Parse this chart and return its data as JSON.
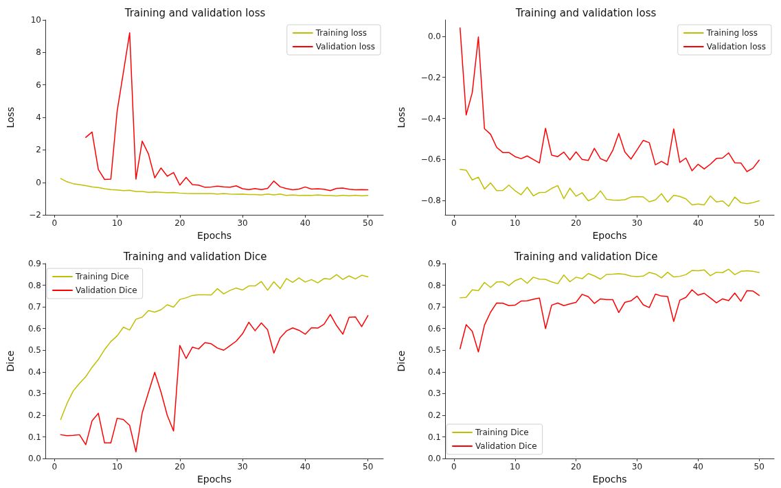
{
  "chart_data": [
    {
      "type": "line",
      "title": "Training and validation loss",
      "xlabel": "Epochs",
      "ylabel": "Loss",
      "legend": "top right",
      "grid": false,
      "x": [
        1,
        2,
        3,
        4,
        5,
        6,
        7,
        8,
        9,
        10,
        11,
        12,
        13,
        14,
        15,
        16,
        17,
        18,
        19,
        20,
        21,
        22,
        23,
        24,
        25,
        26,
        27,
        28,
        29,
        30,
        31,
        32,
        33,
        34,
        35,
        36,
        37,
        38,
        39,
        40,
        41,
        42,
        43,
        44,
        45,
        46,
        47,
        48,
        49,
        50
      ],
      "xlim": [
        -1.45,
        52.45
      ],
      "xticks": [
        0,
        10,
        20,
        30,
        40,
        50
      ],
      "ylim": [
        -2,
        10
      ],
      "yticks": [
        {
          "value": -2,
          "label": "−2"
        },
        0,
        2,
        4,
        6,
        8,
        10
      ],
      "series": [
        {
          "name": "Training loss",
          "color": "#bfbf00",
          "values": [
            0.24,
            0.04,
            -0.08,
            -0.14,
            -0.2,
            -0.27,
            -0.32,
            -0.39,
            -0.44,
            -0.46,
            -0.51,
            -0.49,
            -0.56,
            -0.56,
            -0.61,
            -0.59,
            -0.61,
            -0.63,
            -0.62,
            -0.66,
            -0.68,
            -0.69,
            -0.69,
            -0.69,
            -0.69,
            -0.72,
            -0.69,
            -0.72,
            -0.73,
            -0.72,
            -0.75,
            -0.75,
            -0.77,
            -0.72,
            -0.77,
            -0.72,
            -0.8,
            -0.77,
            -0.8,
            -0.79,
            -0.8,
            -0.77,
            -0.8,
            -0.8,
            -0.83,
            -0.79,
            -0.82,
            -0.79,
            -0.82,
            -0.8
          ]
        },
        {
          "name": "Validation loss",
          "color": "#ff0000",
          "values": [
            null,
            null,
            null,
            null,
            2.77,
            3.1,
            0.8,
            0.18,
            0.2,
            4.38,
            6.77,
            9.21,
            0.2,
            2.54,
            1.75,
            0.28,
            0.89,
            0.38,
            0.61,
            -0.17,
            0.31,
            -0.14,
            -0.17,
            -0.3,
            -0.28,
            -0.23,
            -0.27,
            -0.3,
            -0.21,
            -0.39,
            -0.44,
            -0.38,
            -0.44,
            -0.37,
            0.08,
            -0.27,
            -0.38,
            -0.45,
            -0.41,
            -0.28,
            -0.41,
            -0.39,
            -0.42,
            -0.51,
            -0.37,
            -0.35,
            -0.42,
            -0.45,
            -0.44,
            -0.45
          ]
        }
      ]
    },
    {
      "type": "line",
      "title": "Training and validation loss",
      "xlabel": "Epochs",
      "ylabel": "Loss",
      "legend": "top right",
      "grid": false,
      "x": [
        1,
        2,
        3,
        4,
        5,
        6,
        7,
        8,
        9,
        10,
        11,
        12,
        13,
        14,
        15,
        16,
        17,
        18,
        19,
        20,
        21,
        22,
        23,
        24,
        25,
        26,
        27,
        28,
        29,
        30,
        31,
        32,
        33,
        34,
        35,
        36,
        37,
        38,
        39,
        40,
        41,
        42,
        43,
        44,
        45,
        46,
        47,
        48,
        49,
        50
      ],
      "xlim": [
        -1.45,
        52.45
      ],
      "xticks": [
        0,
        10,
        20,
        30,
        40,
        50
      ],
      "ylim": [
        -0.87,
        0.08
      ],
      "yticks": [
        {
          "value": -0.8,
          "label": "−0.8"
        },
        {
          "value": -0.6,
          "label": "−0.6"
        },
        {
          "value": -0.4,
          "label": "−0.4"
        },
        {
          "value": -0.2,
          "label": "−0.2"
        },
        {
          "value": 0,
          "label": "0.0"
        }
      ],
      "series": [
        {
          "name": "Training loss",
          "color": "#bfbf00",
          "values": [
            -0.648,
            -0.652,
            -0.7,
            -0.686,
            -0.744,
            -0.714,
            -0.752,
            -0.751,
            -0.725,
            -0.752,
            -0.772,
            -0.735,
            -0.777,
            -0.761,
            -0.76,
            -0.741,
            -0.727,
            -0.791,
            -0.74,
            -0.779,
            -0.762,
            -0.801,
            -0.788,
            -0.753,
            -0.794,
            -0.798,
            -0.799,
            -0.796,
            -0.783,
            -0.781,
            -0.782,
            -0.806,
            -0.797,
            -0.767,
            -0.808,
            -0.774,
            -0.78,
            -0.792,
            -0.821,
            -0.817,
            -0.821,
            -0.778,
            -0.807,
            -0.802,
            -0.828,
            -0.783,
            -0.81,
            -0.815,
            -0.81,
            -0.801
          ]
        },
        {
          "name": "Validation loss",
          "color": "#ff0000",
          "values": [
            0.041,
            -0.383,
            -0.274,
            -0.003,
            -0.45,
            -0.477,
            -0.541,
            -0.566,
            -0.566,
            -0.586,
            -0.596,
            -0.583,
            -0.6,
            -0.617,
            -0.448,
            -0.579,
            -0.586,
            -0.564,
            -0.602,
            -0.563,
            -0.6,
            -0.605,
            -0.546,
            -0.596,
            -0.609,
            -0.557,
            -0.473,
            -0.564,
            -0.598,
            -0.553,
            -0.507,
            -0.518,
            -0.626,
            -0.609,
            -0.627,
            -0.451,
            -0.614,
            -0.593,
            -0.655,
            -0.623,
            -0.646,
            -0.623,
            -0.595,
            -0.593,
            -0.568,
            -0.616,
            -0.617,
            -0.659,
            -0.642,
            -0.603
          ]
        }
      ]
    },
    {
      "type": "line",
      "title": "Training and validation Dice",
      "xlabel": "Epochs",
      "ylabel": "Dice",
      "legend": "top left",
      "grid": false,
      "x": [
        1,
        2,
        3,
        4,
        5,
        6,
        7,
        8,
        9,
        10,
        11,
        12,
        13,
        14,
        15,
        16,
        17,
        18,
        19,
        20,
        21,
        22,
        23,
        24,
        25,
        26,
        27,
        28,
        29,
        30,
        31,
        32,
        33,
        34,
        35,
        36,
        37,
        38,
        39,
        40,
        41,
        42,
        43,
        44,
        45,
        46,
        47,
        48,
        49,
        50
      ],
      "xlim": [
        -1.45,
        52.45
      ],
      "xticks": [
        0,
        10,
        20,
        30,
        40,
        50
      ],
      "ylim": [
        0,
        0.9
      ],
      "yticks": [
        {
          "value": 0,
          "label": "0.0"
        },
        0.1,
        0.2,
        0.3,
        0.4,
        0.5,
        0.6,
        0.7,
        0.8,
        0.9
      ],
      "series": [
        {
          "name": "Training Dice",
          "color": "#bfbf00",
          "values": [
            0.18,
            0.254,
            0.312,
            0.347,
            0.378,
            0.421,
            0.457,
            0.503,
            0.54,
            0.566,
            0.606,
            0.593,
            0.643,
            0.653,
            0.683,
            0.676,
            0.687,
            0.71,
            0.699,
            0.734,
            0.742,
            0.753,
            0.756,
            0.756,
            0.755,
            0.784,
            0.76,
            0.776,
            0.787,
            0.778,
            0.797,
            0.797,
            0.817,
            0.777,
            0.816,
            0.784,
            0.831,
            0.813,
            0.834,
            0.815,
            0.826,
            0.811,
            0.831,
            0.828,
            0.849,
            0.827,
            0.843,
            0.829,
            0.846,
            0.839
          ]
        },
        {
          "name": "Validation Dice",
          "color": "#ff0000",
          "values": [
            0.11,
            0.106,
            0.107,
            0.11,
            0.064,
            0.174,
            0.209,
            0.072,
            0.072,
            0.186,
            0.18,
            0.153,
            0.031,
            0.211,
            0.305,
            0.398,
            0.307,
            0.199,
            0.127,
            0.522,
            0.462,
            0.514,
            0.506,
            0.535,
            0.53,
            0.51,
            0.5,
            0.521,
            0.542,
            0.576,
            0.629,
            0.59,
            0.626,
            0.594,
            0.487,
            0.557,
            0.589,
            0.603,
            0.592,
            0.574,
            0.604,
            0.602,
            0.62,
            0.665,
            0.614,
            0.574,
            0.652,
            0.654,
            0.609,
            0.66
          ]
        }
      ]
    },
    {
      "type": "line",
      "title": "Training and validation Dice",
      "xlabel": "Epochs",
      "ylabel": "Dice",
      "legend": "bottom left",
      "grid": false,
      "x": [
        1,
        2,
        3,
        4,
        5,
        6,
        7,
        8,
        9,
        10,
        11,
        12,
        13,
        14,
        15,
        16,
        17,
        18,
        19,
        20,
        21,
        22,
        23,
        24,
        25,
        26,
        27,
        28,
        29,
        30,
        31,
        32,
        33,
        34,
        35,
        36,
        37,
        38,
        39,
        40,
        41,
        42,
        43,
        44,
        45,
        46,
        47,
        48,
        49,
        50
      ],
      "xlim": [
        -1.45,
        52.45
      ],
      "xticks": [
        0,
        10,
        20,
        30,
        40,
        50
      ],
      "ylim": [
        0,
        0.9
      ],
      "yticks": [
        {
          "value": 0,
          "label": "0.0"
        },
        0.1,
        0.2,
        0.3,
        0.4,
        0.5,
        0.6,
        0.7,
        0.8,
        0.9
      ],
      "series": [
        {
          "name": "Training Dice",
          "color": "#bfbf00",
          "values": [
            0.742,
            0.744,
            0.779,
            0.775,
            0.813,
            0.79,
            0.815,
            0.816,
            0.798,
            0.821,
            0.832,
            0.809,
            0.837,
            0.828,
            0.827,
            0.815,
            0.807,
            0.847,
            0.816,
            0.837,
            0.83,
            0.854,
            0.843,
            0.828,
            0.85,
            0.851,
            0.853,
            0.85,
            0.842,
            0.84,
            0.842,
            0.859,
            0.852,
            0.834,
            0.86,
            0.838,
            0.841,
            0.849,
            0.868,
            0.867,
            0.871,
            0.844,
            0.86,
            0.858,
            0.874,
            0.849,
            0.864,
            0.867,
            0.864,
            0.859
          ]
        },
        {
          "name": "Validation Dice",
          "color": "#ff0000",
          "values": [
            0.507,
            0.618,
            0.587,
            0.492,
            0.616,
            0.676,
            0.718,
            0.717,
            0.706,
            0.708,
            0.727,
            0.728,
            0.735,
            0.741,
            0.6,
            0.708,
            0.718,
            0.706,
            0.714,
            0.721,
            0.758,
            0.747,
            0.716,
            0.737,
            0.734,
            0.734,
            0.674,
            0.721,
            0.728,
            0.75,
            0.71,
            0.697,
            0.759,
            0.75,
            0.748,
            0.633,
            0.731,
            0.744,
            0.779,
            0.754,
            0.763,
            0.741,
            0.719,
            0.737,
            0.729,
            0.764,
            0.726,
            0.775,
            0.773,
            0.753
          ]
        }
      ]
    }
  ]
}
